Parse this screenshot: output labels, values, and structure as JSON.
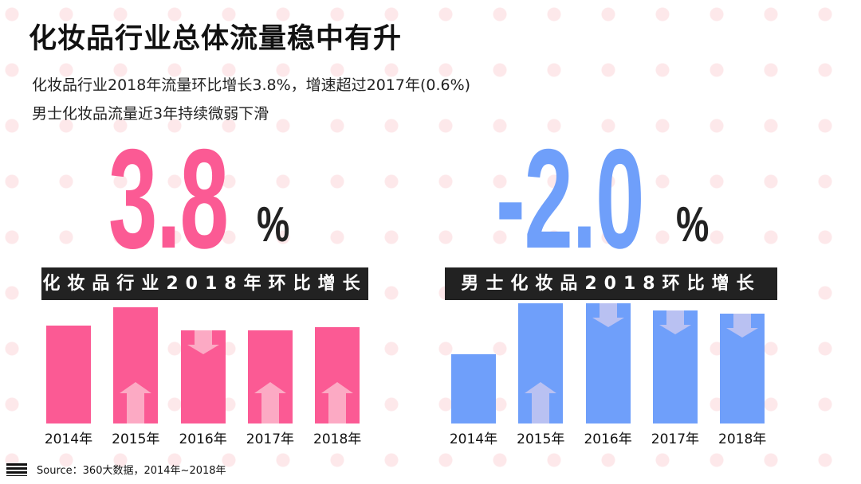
{
  "title": "化妆品行业总体流量稳中有升",
  "subtitles": [
    "化妆品行业2018年流量环比增长3.8%，增速超过2017年(0.6%)",
    "男士化妆品流量近3年持续微弱下滑"
  ],
  "source": "Source：360大数据，2014年~2018年",
  "colors": {
    "pink": "#fb5a94",
    "blue": "#6f9ffa",
    "pink_arrow": "#fcaac4",
    "blue_arrow": "#b9c1f2",
    "label_bg": "#222222"
  },
  "chart_data": [
    {
      "type": "bar",
      "title": "化妆品行业2018年环比增长",
      "headline_value": "3.8",
      "headline_unit": "%",
      "categories": [
        "2014年",
        "2015年",
        "2016年",
        "2017年",
        "2018年"
      ],
      "values": [
        123,
        146,
        117,
        117,
        121
      ],
      "value_note": "relative bar heights (no axis shown)",
      "trend": [
        "none",
        "up",
        "down",
        "up",
        "up"
      ],
      "color": "#fb5a94"
    },
    {
      "type": "bar",
      "title": "男士化妆品2018环比增长",
      "headline_value": "-2.0",
      "headline_unit": "%",
      "categories": [
        "2014年",
        "2015年",
        "2016年",
        "2017年",
        "2018年"
      ],
      "values": [
        87,
        151,
        151,
        142,
        138
      ],
      "value_note": "relative bar heights (no axis shown)",
      "trend": [
        "none",
        "up",
        "down",
        "down",
        "down"
      ],
      "color": "#6f9ffa"
    }
  ]
}
